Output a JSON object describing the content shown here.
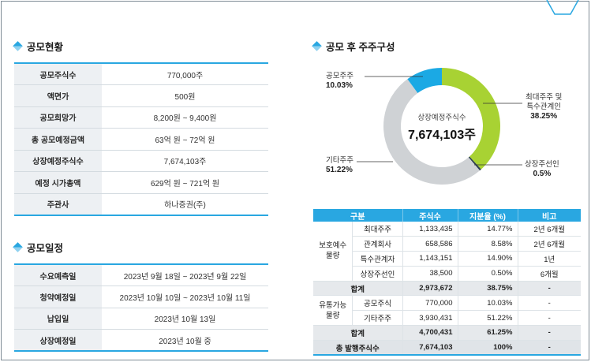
{
  "sections": {
    "offering_status": "공모현황",
    "schedule": "공모일정",
    "shareholders": "공모 후 주주구성"
  },
  "offering_rows": [
    {
      "label": "공모주식수",
      "value": "770,000주"
    },
    {
      "label": "액면가",
      "value": "500원"
    },
    {
      "label": "공모희망가",
      "value": "8,200원 ~ 9,400원"
    },
    {
      "label": "총 공모예정금액",
      "value": "63억 원 ~ 72억 원"
    },
    {
      "label": "상장예정주식수",
      "value": "7,674,103주"
    },
    {
      "label": "예정 시가총액",
      "value": "629억 원 ~ 721억 원"
    },
    {
      "label": "주관사",
      "value": "하나증권(주)"
    }
  ],
  "schedule_rows": [
    {
      "label": "수요예측일",
      "value": "2023년 9월 18일 ~ 2023년 9월 22일"
    },
    {
      "label": "청약예정일",
      "value": "2023년 10월 10일 ~ 2023년 10월 11일"
    },
    {
      "label": "납입일",
      "value": "2023년 10월 13일"
    },
    {
      "label": "상장예정일",
      "value": "2023년 10월 중"
    }
  ],
  "donut": {
    "center_label": "상장예정주식수",
    "center_value": "7,674,103주",
    "colors": {
      "largest": "#a8d233",
      "public": "#1ba9e4",
      "other": "#cfd2d5",
      "underwriter": "#2c3e50"
    },
    "labels": {
      "public": {
        "name": "공모주주",
        "pct": "10.03%"
      },
      "largest": {
        "name1": "최대주주 및",
        "name2": "특수관계인",
        "pct": "38.25%"
      },
      "underwriter": {
        "name": "상장주선인",
        "pct": "0.5%"
      },
      "other": {
        "name": "기타주주",
        "pct": "51.22%"
      }
    }
  },
  "chart_data": {
    "type": "pie",
    "title": "공모 후 주주구성",
    "categories": [
      "최대주주 및 특수관계인",
      "상장주선인",
      "기타주주",
      "공모주주"
    ],
    "values": [
      38.25,
      0.5,
      51.22,
      10.03
    ]
  },
  "table": {
    "headers": [
      "구분",
      "주식수",
      "지분율 (%)",
      "비고"
    ],
    "group1": "보호예수\n물량",
    "group2": "유통가능\n물량",
    "protected": [
      {
        "name": "최대주주",
        "shares": "1,133,435",
        "pct": "14.77%",
        "note": "2년 6개월"
      },
      {
        "name": "관계회사",
        "shares": "658,586",
        "pct": "8.58%",
        "note": "2년 6개월"
      },
      {
        "name": "특수관계자",
        "shares": "1,143,151",
        "pct": "14.90%",
        "note": "1년"
      },
      {
        "name": "상장주선인",
        "shares": "38,500",
        "pct": "0.50%",
        "note": "6개월"
      }
    ],
    "subtotal1": {
      "name": "합계",
      "shares": "2,973,672",
      "pct": "38.75%",
      "note": "-"
    },
    "tradable": [
      {
        "name": "공모주식",
        "shares": "770,000",
        "pct": "10.03%",
        "note": "-"
      },
      {
        "name": "기타주주",
        "shares": "3,930,431",
        "pct": "51.22%",
        "note": "-"
      }
    ],
    "subtotal2": {
      "name": "합계",
      "shares": "4,700,431",
      "pct": "61.25%",
      "note": "-"
    },
    "total": {
      "name": "총 발행주식수",
      "shares": "7,674,103",
      "pct": "100%",
      "note": "-"
    }
  }
}
